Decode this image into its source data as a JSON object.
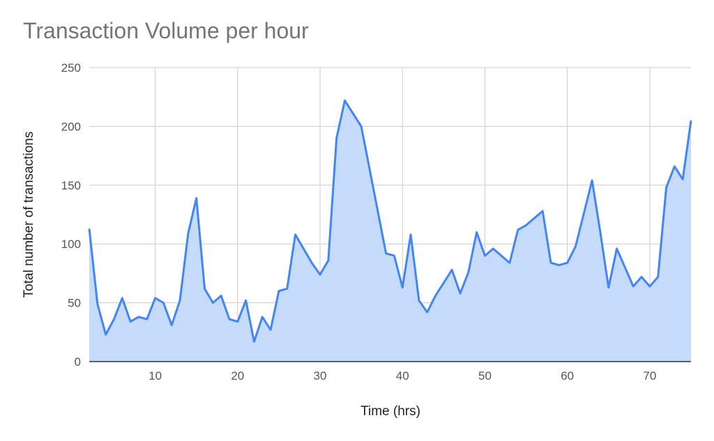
{
  "chart_data": {
    "type": "area",
    "title": "Transaction Volume per hour",
    "xlabel": "Time (hrs)",
    "ylabel": "Total number of transactions",
    "xlim": [
      2,
      75
    ],
    "ylim": [
      0,
      250
    ],
    "x_ticks": [
      10,
      20,
      30,
      40,
      50,
      60,
      70
    ],
    "y_ticks": [
      0,
      50,
      100,
      150,
      200,
      250
    ],
    "grid": true,
    "colors": {
      "line": "#4285f4",
      "fill": "#c6daf9",
      "grid": "#cccccc",
      "axis": "#333333"
    },
    "series": [
      {
        "x": [
          2,
          3,
          4,
          5,
          6,
          7,
          8,
          9,
          10,
          11,
          12,
          13,
          14,
          15,
          16,
          17,
          18,
          19,
          20,
          21,
          22,
          23,
          24,
          25,
          26,
          27,
          28,
          29,
          30,
          31,
          32,
          33,
          34,
          35,
          36,
          37,
          38,
          39,
          40,
          41,
          42,
          43,
          44,
          45,
          46,
          47,
          48,
          49,
          50,
          51,
          52,
          53,
          54,
          55,
          56,
          57,
          58,
          59,
          60,
          61,
          62,
          63,
          64,
          65,
          66,
          67,
          68,
          69,
          70,
          71,
          72,
          73,
          74,
          75
        ],
        "values": [
          113,
          49,
          23,
          36,
          54,
          34,
          38,
          36,
          54,
          50,
          31,
          52,
          109,
          139,
          62,
          50,
          56,
          36,
          34,
          52,
          17,
          38,
          27,
          60,
          62,
          108,
          96,
          84,
          74,
          86,
          190,
          222,
          211,
          200,
          164,
          128,
          92,
          90,
          63,
          108,
          52,
          42,
          56,
          67,
          78,
          58,
          76,
          110,
          90,
          96,
          90,
          84,
          112,
          116,
          122,
          128,
          84,
          82,
          84,
          98,
          126,
          154,
          110,
          63,
          96,
          80,
          64,
          72,
          64,
          72,
          148,
          166,
          155,
          205
        ]
      }
    ]
  }
}
